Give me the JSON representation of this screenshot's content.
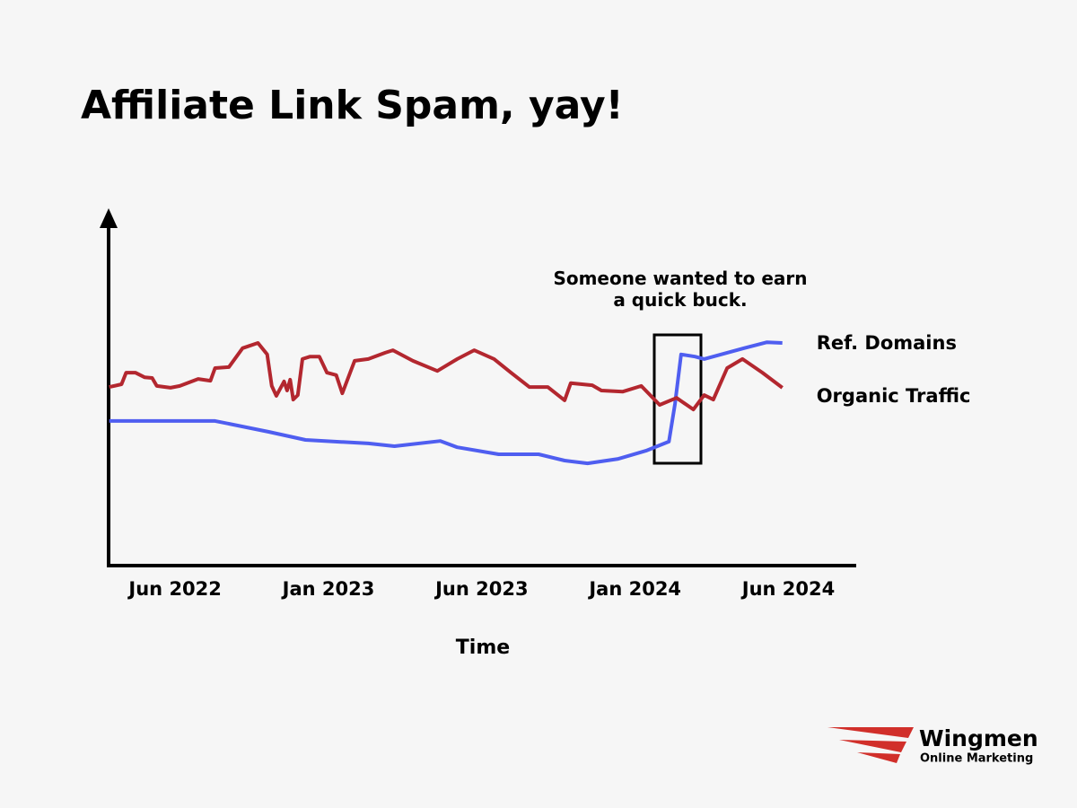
{
  "chart_data": {
    "type": "line",
    "title": "Affiliate Link Spam, yay!",
    "x_label": "Time",
    "annotation": "Someone wanted to earn a quick buck.",
    "xlim": [
      -0.44,
      4.43
    ],
    "xticks": [
      {
        "value": 0,
        "label": "Jun 2022"
      },
      {
        "value": 1,
        "label": "Jan 2023"
      },
      {
        "value": 2,
        "label": "Jun 2023"
      },
      {
        "value": 3,
        "label": "Jan 2024"
      },
      {
        "value": 4,
        "label": "Jun 2024"
      }
    ],
    "ylim": [
      0,
      100
    ],
    "grid": false,
    "series": [
      {
        "name": "Ref. Domains",
        "color": "#4f5ef0",
        "x": [
          -0.43,
          0.26,
          0.61,
          0.85,
          1.26,
          1.43,
          1.73,
          1.84,
          2.11,
          2.37,
          2.54,
          2.69,
          2.89,
          3.07,
          3.22,
          3.26,
          3.3,
          3.39,
          3.45,
          3.71,
          3.86,
          3.96
        ],
        "values": [
          41.3,
          41.3,
          38.2,
          35.9,
          34.9,
          34.1,
          35.6,
          33.8,
          31.8,
          31.8,
          30.0,
          29.2,
          30.5,
          32.8,
          35.4,
          46.2,
          60.3,
          59.7,
          59.0,
          62.1,
          63.8,
          63.6
        ]
      },
      {
        "name": "Organic Traffic",
        "color": "#b3272f",
        "x": [
          -0.43,
          -0.35,
          -0.32,
          -0.26,
          -0.2,
          -0.15,
          -0.12,
          -0.03,
          0.03,
          0.15,
          0.23,
          0.26,
          0.35,
          0.44,
          0.54,
          0.6,
          0.63,
          0.66,
          0.71,
          0.73,
          0.75,
          0.77,
          0.8,
          0.83,
          0.88,
          0.94,
          0.99,
          1.05,
          1.09,
          1.17,
          1.26,
          1.37,
          1.42,
          1.55,
          1.71,
          1.84,
          1.95,
          2.08,
          2.19,
          2.31,
          2.43,
          2.54,
          2.58,
          2.72,
          2.78,
          2.92,
          3.04,
          3.16,
          3.27,
          3.38,
          3.45,
          3.51,
          3.6,
          3.7,
          3.83,
          3.96
        ],
        "values": [
          51.0,
          51.8,
          55.1,
          55.1,
          53.8,
          53.6,
          51.3,
          50.8,
          51.3,
          53.3,
          52.8,
          56.4,
          56.7,
          62.1,
          63.6,
          60.3,
          51.3,
          48.5,
          52.6,
          50.0,
          53.1,
          47.4,
          48.7,
          59.0,
          59.7,
          59.7,
          55.1,
          54.4,
          49.2,
          58.5,
          59.0,
          60.8,
          61.5,
          58.5,
          55.6,
          59.0,
          61.5,
          59.0,
          55.1,
          51.0,
          51.0,
          47.2,
          52.1,
          51.5,
          50.0,
          49.7,
          51.3,
          45.9,
          47.9,
          44.6,
          48.7,
          47.4,
          56.4,
          59.0,
          55.1,
          50.8
        ]
      }
    ]
  },
  "logo": {
    "name": "Wingmen",
    "tagline": "Online Marketing"
  }
}
